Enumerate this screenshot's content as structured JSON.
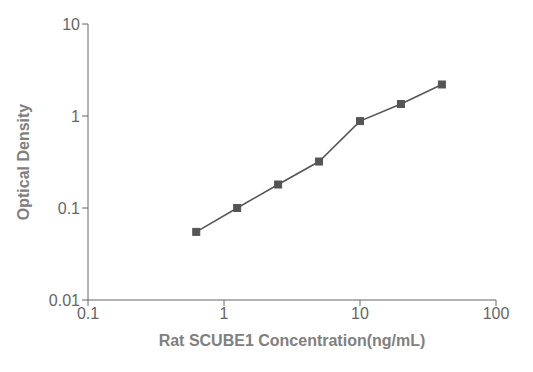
{
  "chart_data": {
    "type": "line",
    "xlabel": "Rat SCUBE1 Concentration(ng/mL)",
    "ylabel": "Optical Density",
    "x": [
      0.625,
      1.25,
      2.5,
      5,
      10,
      20,
      40
    ],
    "series": [
      {
        "values": [
          0.055,
          0.1,
          0.18,
          0.32,
          0.88,
          1.35,
          2.2
        ],
        "color": "#555555",
        "marker": "square"
      }
    ],
    "xlim": [
      0.1,
      100
    ],
    "ylim": [
      0.01,
      10
    ],
    "xticks": [
      0.1,
      1,
      10,
      100
    ],
    "yticks": [
      0.01,
      0.1,
      1,
      10
    ],
    "log": true,
    "grid": false
  }
}
